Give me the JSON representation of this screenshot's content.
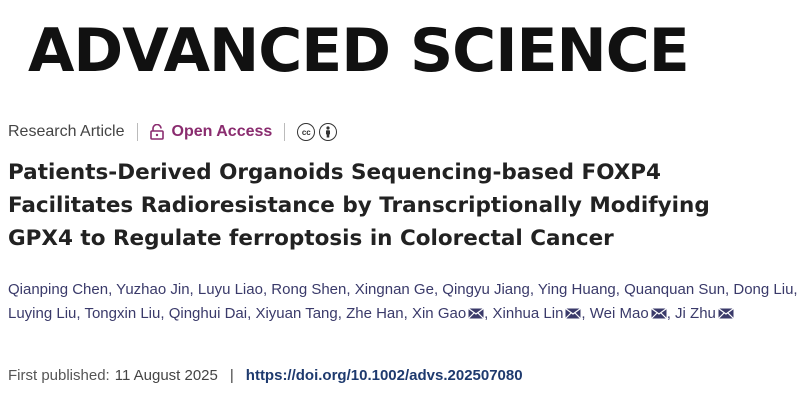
{
  "journal": {
    "name": "ADVANCED SCIENCE"
  },
  "article_meta": {
    "type": "Research Article",
    "access": "Open Access",
    "license_icons": [
      "cc-icon",
      "attribution-icon"
    ]
  },
  "title_lines": [
    "Patients-Derived Organoids Sequencing-based FOXP4",
    "Facilitates Radioresistance by Transcriptionally Modifying",
    "GPX4 to Regulate ferroptosis in Colorectal Cancer"
  ],
  "authors": [
    {
      "name": "Qianping Chen",
      "corresponding": false
    },
    {
      "name": "Yuzhao Jin",
      "corresponding": false
    },
    {
      "name": "Luyu Liao",
      "corresponding": false
    },
    {
      "name": "Rong Shen",
      "corresponding": false
    },
    {
      "name": "Xingnan Ge",
      "corresponding": false
    },
    {
      "name": "Qingyu Jiang",
      "corresponding": false
    },
    {
      "name": "Ying Huang",
      "corresponding": false
    },
    {
      "name": "Quanquan Sun",
      "corresponding": false
    },
    {
      "name": "Dong Liu",
      "corresponding": false
    },
    {
      "name": "Luying Liu",
      "corresponding": false
    },
    {
      "name": "Tongxin Liu",
      "corresponding": false
    },
    {
      "name": "Qinghui Dai",
      "corresponding": false
    },
    {
      "name": "Xiyuan Tang",
      "corresponding": false
    },
    {
      "name": "Zhe Han",
      "corresponding": false
    },
    {
      "name": "Xin Gao",
      "corresponding": true
    },
    {
      "name": "Xinhua Lin",
      "corresponding": true
    },
    {
      "name": "Wei Mao",
      "corresponding": true
    },
    {
      "name": "Ji Zhu",
      "corresponding": true
    }
  ],
  "publication": {
    "first_published_label": "First published:",
    "date": "11 August 2025",
    "separator": "|",
    "doi": "https://doi.org/10.1002/advs.202507080"
  },
  "colors": {
    "open_access": "#8a2c6f",
    "author_link": "#3a3a6a",
    "doi_link": "#1e3a6e"
  }
}
